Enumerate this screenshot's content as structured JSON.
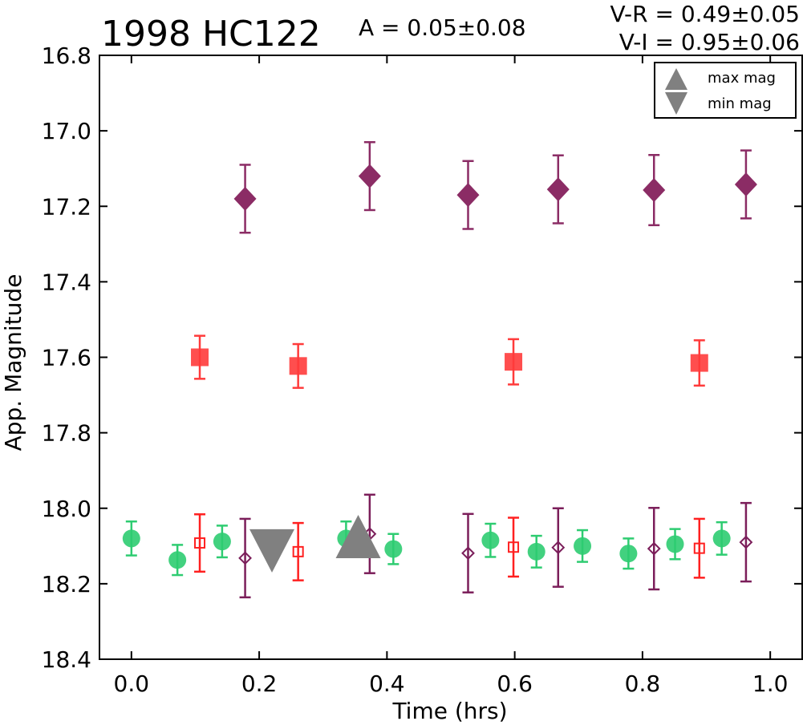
{
  "chart_data": {
    "type": "scatter",
    "title": "1998 HC122",
    "amplitude_text": "A  = 0.05±0.08",
    "color_text": [
      "V-R = 0.49±0.05",
      "V-I  = 0.95±0.06"
    ],
    "xlabel": "Time (hrs)",
    "ylabel": "App. Magnitude",
    "xlim": [
      -0.05,
      1.05
    ],
    "ylim": [
      18.4,
      16.8
    ],
    "y_inverted": true,
    "xticks": [
      0.0,
      0.2,
      0.4,
      0.6,
      0.8,
      1.0
    ],
    "xtick_labels": [
      "0.0",
      "0.2",
      "0.4",
      "0.6",
      "0.8",
      "1.0"
    ],
    "yticks": [
      16.8,
      17.0,
      17.2,
      17.4,
      17.6,
      17.8,
      18.0,
      18.2,
      18.4
    ],
    "ytick_labels": [
      "16.8",
      "17.0",
      "17.2",
      "17.4",
      "17.6",
      "17.8",
      "18.0",
      "18.2",
      "18.4"
    ],
    "grid": false,
    "legend_position": "top-right",
    "legend": [
      {
        "label": "max mag",
        "marker": "triangle-up",
        "color": "#808080"
      },
      {
        "label": "min mag",
        "marker": "triangle-down",
        "color": "#808080"
      }
    ],
    "series": [
      {
        "marker": "diamond",
        "filled": true,
        "color": "#8b2c65",
        "points": [
          [
            0.178,
            17.18,
            0.09
          ],
          [
            0.373,
            17.12,
            0.09
          ],
          [
            0.527,
            17.17,
            0.09
          ],
          [
            0.668,
            17.155,
            0.09
          ],
          [
            0.818,
            17.157,
            0.093
          ],
          [
            0.962,
            17.142,
            0.09
          ]
        ]
      },
      {
        "marker": "square",
        "filled": true,
        "color": "#ff3b3b",
        "points": [
          [
            0.107,
            17.6,
            0.057
          ],
          [
            0.261,
            17.623,
            0.058
          ],
          [
            0.598,
            17.612,
            0.06
          ],
          [
            0.889,
            17.615,
            0.06
          ]
        ]
      },
      {
        "marker": "circle",
        "filled": true,
        "color": "#2ecc71",
        "points": [
          [
            0.0,
            18.08,
            0.045
          ],
          [
            0.072,
            18.137,
            0.04
          ],
          [
            0.142,
            18.088,
            0.042
          ],
          [
            0.336,
            18.08,
            0.045
          ],
          [
            0.41,
            18.108,
            0.04
          ],
          [
            0.562,
            18.085,
            0.044
          ],
          [
            0.634,
            18.115,
            0.042
          ],
          [
            0.706,
            18.1,
            0.042
          ],
          [
            0.778,
            18.12,
            0.04
          ],
          [
            0.851,
            18.095,
            0.04
          ],
          [
            0.924,
            18.08,
            0.043
          ]
        ]
      },
      {
        "marker": "square",
        "filled": false,
        "color": "#ff2020",
        "points": [
          [
            0.107,
            18.092,
            0.076
          ],
          [
            0.261,
            18.115,
            0.076
          ],
          [
            0.598,
            18.103,
            0.078
          ],
          [
            0.889,
            18.106,
            0.078
          ]
        ]
      },
      {
        "marker": "diamond",
        "filled": false,
        "color": "#7b1e5a",
        "points": [
          [
            0.178,
            18.132,
            0.104
          ],
          [
            0.373,
            18.068,
            0.104
          ],
          [
            0.527,
            18.119,
            0.104
          ],
          [
            0.668,
            18.104,
            0.104
          ],
          [
            0.818,
            18.107,
            0.108
          ],
          [
            0.962,
            18.09,
            0.104
          ]
        ]
      },
      {
        "marker": "triangle-down",
        "filled": true,
        "color": "#808080",
        "size": "large",
        "points": [
          [
            0.22,
            18.113,
            0
          ]
        ]
      },
      {
        "marker": "triangle-up",
        "filled": true,
        "color": "#808080",
        "size": "large",
        "points": [
          [
            0.355,
            18.075,
            0
          ]
        ]
      }
    ]
  }
}
